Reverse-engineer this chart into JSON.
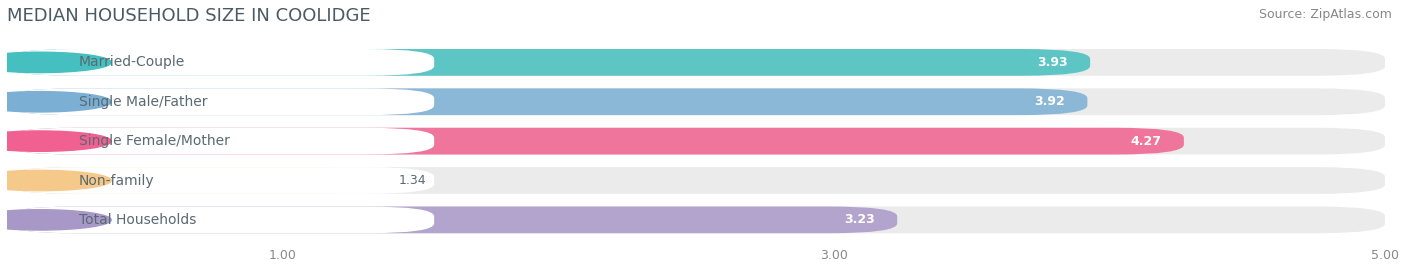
{
  "title": "MEDIAN HOUSEHOLD SIZE IN COOLIDGE",
  "source": "Source: ZipAtlas.com",
  "categories": [
    "Married-Couple",
    "Single Male/Father",
    "Single Female/Mother",
    "Non-family",
    "Total Households"
  ],
  "values": [
    3.93,
    3.92,
    4.27,
    1.34,
    3.23
  ],
  "bar_colors": [
    "#45BFBF",
    "#7BAFD4",
    "#F06090",
    "#F5C98A",
    "#A898C8"
  ],
  "label_color": "#5a6a72",
  "value_color_dark": "#5a6a72",
  "background_color": "#ffffff",
  "bar_bg_color": "#eeeeee",
  "xlim": [
    0,
    5.0
  ],
  "xticks": [
    1.0,
    3.0,
    5.0
  ],
  "title_fontsize": 13,
  "source_fontsize": 9,
  "label_fontsize": 10,
  "value_fontsize": 9
}
